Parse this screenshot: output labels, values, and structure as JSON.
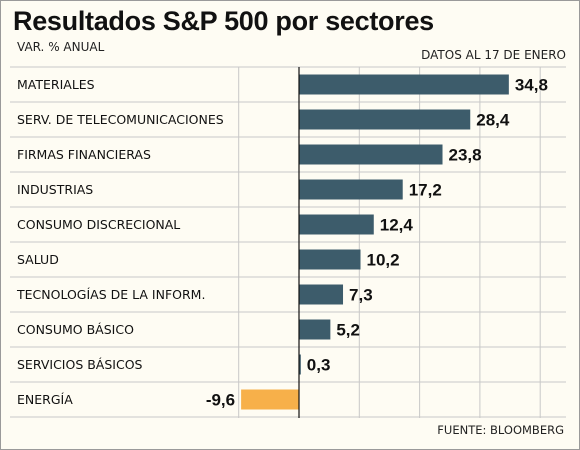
{
  "header": {
    "title": "Resultados S&P 500 por sectores",
    "subtitle": "VAR. % ANUAL",
    "note": "DATOS AL 17 DE ENERO",
    "source": "FUENTE: BLOOMBERG"
  },
  "colors": {
    "positive": "#3d5c6b",
    "negative": "#f7b04a",
    "row_separator": "#c8c8c8",
    "gridline": "#c8c8c8",
    "zero_line": "#111111"
  },
  "chart_data": {
    "type": "bar",
    "orientation": "horizontal",
    "title": "Resultados S&P 500 por sectores",
    "subtitle": "VAR. % ANUAL",
    "categories": [
      "MATERIALES",
      "SERV. DE TELECOMUNICACIONES",
      "FIRMAS FINANCIERAS",
      "INDUSTRIAS",
      "CONSUMO DISCRECIONAL",
      "SALUD",
      "TECNOLOGÍAS DE LA INFORM.",
      "CONSUMO BÁSICO",
      "SERVICIOS BÁSICOS",
      "ENERGÍA"
    ],
    "values": [
      34.8,
      28.4,
      23.8,
      17.2,
      12.4,
      10.2,
      7.3,
      5.2,
      0.3,
      -9.6
    ],
    "value_labels": [
      "34,8",
      "28,4",
      "23,8",
      "17,2",
      "12,4",
      "10,2",
      "7,3",
      "5,2",
      "0,3",
      "-9,6"
    ],
    "xlim": [
      -10,
      40
    ],
    "grid": true
  }
}
